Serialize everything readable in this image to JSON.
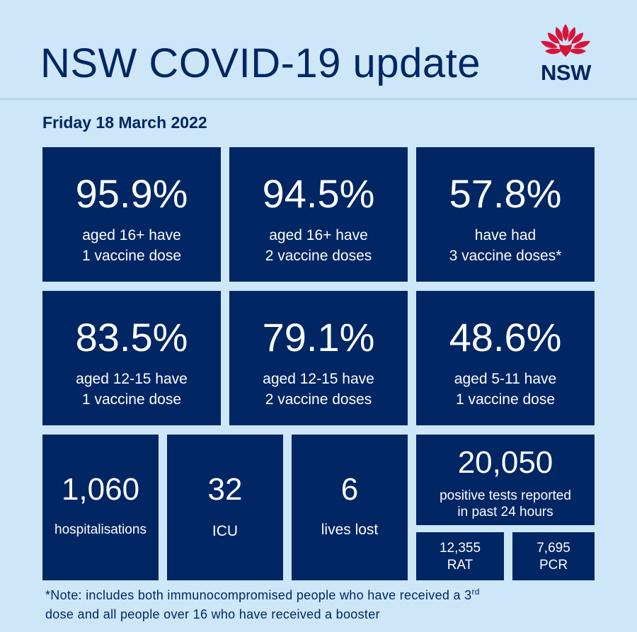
{
  "header": {
    "title": "NSW COVID-19 update",
    "logo_text": "NSW",
    "logo_icon": "waratah-flower-icon",
    "logo_color": "#d7153a"
  },
  "date": "Friday 18 March 2022",
  "colors": {
    "background": "#cde7f8",
    "tile": "#002664",
    "text_dark": "#002664"
  },
  "vaccination": [
    {
      "value": "95.9%",
      "line1": "aged 16+ have",
      "line2": "1 vaccine dose"
    },
    {
      "value": "94.5%",
      "line1": "aged 16+ have",
      "line2": "2 vaccine doses"
    },
    {
      "value": "57.8%",
      "line1": "have had",
      "line2": "3 vaccine doses*"
    },
    {
      "value": "83.5%",
      "line1": "aged 12-15 have",
      "line2": "1 vaccine dose"
    },
    {
      "value": "79.1%",
      "line1": "aged 12-15 have",
      "line2": "2 vaccine doses"
    },
    {
      "value": "48.6%",
      "line1": "aged 5-11 have",
      "line2": "1 vaccine dose"
    }
  ],
  "stats": [
    {
      "value": "1,060",
      "label": "hospitalisations"
    },
    {
      "value": "32",
      "label": "ICU"
    },
    {
      "value": "6",
      "label": "lives lost"
    }
  ],
  "tests": {
    "value": "20,050",
    "line1": "positive tests reported",
    "line2": "in past 24 hours",
    "rat": {
      "value": "12,355",
      "label": "RAT"
    },
    "pcr": {
      "value": "7,695",
      "label": "PCR"
    }
  },
  "footnote": {
    "line1_text": "*Note: includes both immunocompromised  people who have received a 3",
    "line1_sup": "rd",
    "line2_text": "dose and all people over 16 who have received a booster"
  }
}
